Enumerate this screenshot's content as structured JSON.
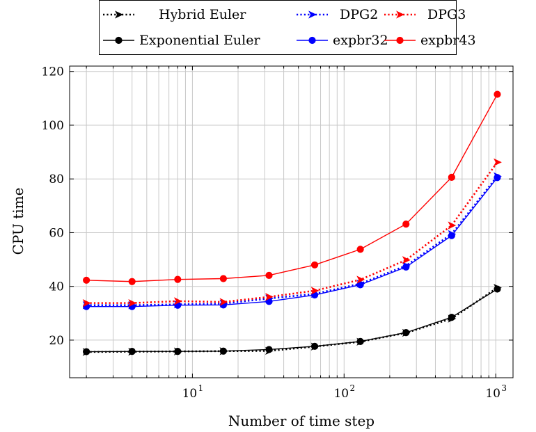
{
  "chart_data": {
    "type": "line",
    "xlabel": "Number of time step",
    "ylabel": "CPU time",
    "x_scale": "log",
    "xlim": [
      1.55,
      1300
    ],
    "ylim": [
      6,
      122
    ],
    "grid": true,
    "legend_position": "top-center, outside plot",
    "x_ticks": [
      {
        "value": 10,
        "base": "10",
        "exp": "1"
      },
      {
        "value": 100,
        "base": "10",
        "exp": "2"
      },
      {
        "value": 1000,
        "base": "10",
        "exp": "3"
      }
    ],
    "y_ticks": [
      20,
      40,
      60,
      80,
      100,
      120
    ],
    "x": [
      2,
      4,
      8,
      16,
      32,
      64,
      128,
      256,
      512,
      1024
    ],
    "series": [
      {
        "name": "Hybrid Euler",
        "color": "#000000",
        "style": "dotted",
        "marker": "arrow",
        "values": [
          15.6,
          15.7,
          15.8,
          15.9,
          16.0,
          17.6,
          19.4,
          22.7,
          28.0,
          39.5
        ]
      },
      {
        "name": "DPG2",
        "color": "#0000ff",
        "style": "dotted",
        "marker": "arrow",
        "values": [
          33.0,
          33.0,
          33.3,
          33.6,
          35.5,
          37.2,
          41.0,
          47.7,
          59.5,
          81.0
        ]
      },
      {
        "name": "DPG3",
        "color": "#ff0000",
        "style": "dotted",
        "marker": "arrow",
        "values": [
          33.8,
          33.8,
          34.5,
          34.2,
          36.1,
          38.4,
          42.5,
          49.8,
          62.7,
          86.2
        ]
      },
      {
        "name": "Exponential Euler",
        "color": "#000000",
        "style": "solid",
        "marker": "circle",
        "values": [
          15.7,
          15.8,
          15.8,
          15.9,
          16.5,
          17.7,
          19.5,
          22.8,
          28.5,
          39.0
        ]
      },
      {
        "name": "expbr32",
        "color": "#0000ff",
        "style": "solid",
        "marker": "circle",
        "values": [
          32.5,
          32.5,
          33.0,
          33.1,
          34.4,
          36.8,
          40.6,
          47.2,
          58.9,
          80.5
        ]
      },
      {
        "name": "expbr43",
        "color": "#ff0000",
        "style": "solid",
        "marker": "circle",
        "values": [
          42.3,
          41.8,
          42.6,
          42.9,
          44.1,
          48.0,
          53.8,
          63.2,
          80.6,
          111.5
        ]
      }
    ]
  }
}
